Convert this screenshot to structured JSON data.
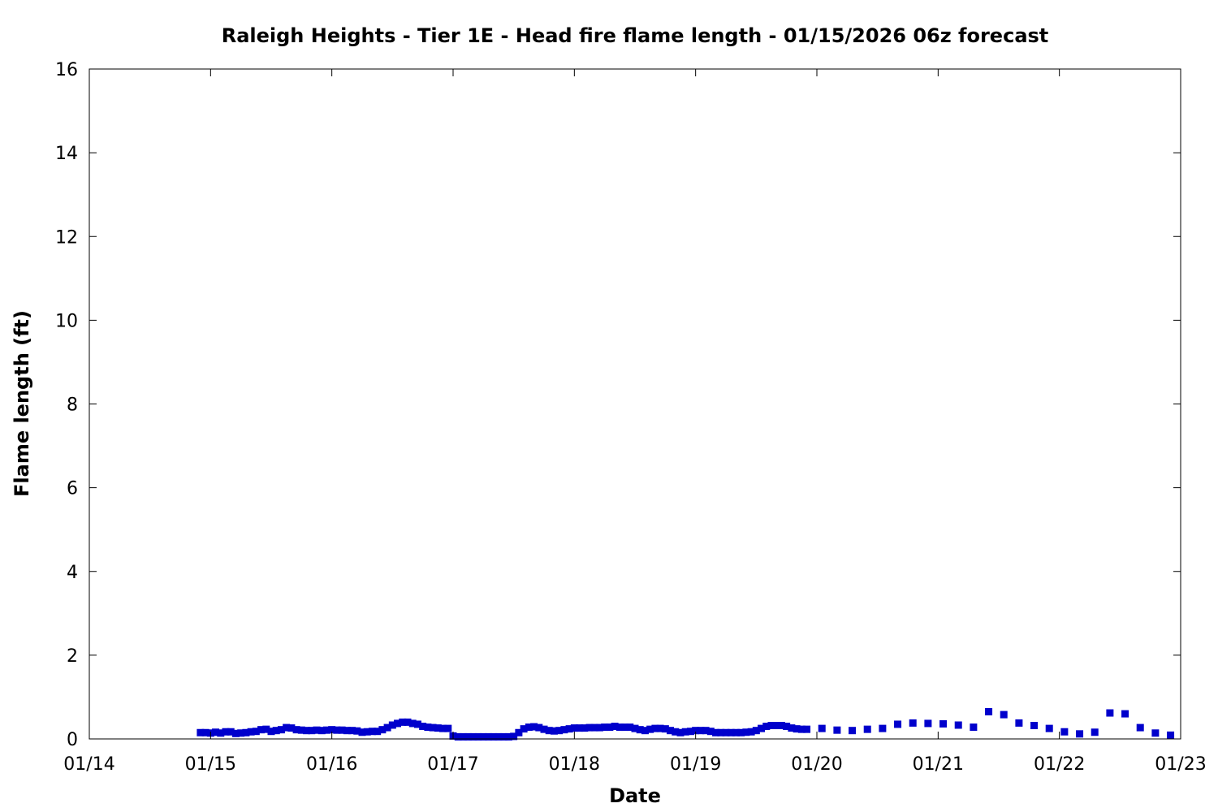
{
  "chart_data": {
    "type": "scatter",
    "title": "Raleigh Heights - Tier 1E - Head fire flame length - 01/15/2026 06z forecast",
    "xlabel": "Date",
    "ylabel": "Flame length (ft)",
    "x_ticks": [
      "01/14",
      "01/15",
      "01/16",
      "01/17",
      "01/18",
      "01/19",
      "01/20",
      "01/21",
      "01/22",
      "01/23"
    ],
    "y_ticks": [
      "0",
      "2",
      "4",
      "6",
      "8",
      "10",
      "12",
      "14",
      "16"
    ],
    "xlim": [
      "01/14 00:00",
      "01/23 00:00"
    ],
    "ylim": [
      0,
      16
    ],
    "grid": false,
    "legend": "none",
    "marker_color": "#0000cc",
    "series": [
      {
        "x": [
          "01/14 22:00",
          "01/14 23:00",
          "01/15 00:00",
          "01/15 01:00",
          "01/15 02:00",
          "01/15 03:00",
          "01/15 04:00",
          "01/15 05:00",
          "01/15 06:00",
          "01/15 07:00",
          "01/15 08:00",
          "01/15 09:00",
          "01/15 10:00",
          "01/15 11:00",
          "01/15 12:00",
          "01/15 13:00",
          "01/15 14:00",
          "01/15 15:00",
          "01/15 16:00",
          "01/15 17:00",
          "01/15 18:00",
          "01/15 19:00",
          "01/15 20:00",
          "01/15 21:00",
          "01/15 22:00",
          "01/15 23:00",
          "01/16 00:00",
          "01/16 01:00",
          "01/16 02:00",
          "01/16 03:00",
          "01/16 04:00",
          "01/16 05:00",
          "01/16 06:00",
          "01/16 07:00",
          "01/16 08:00",
          "01/16 09:00",
          "01/16 10:00",
          "01/16 11:00",
          "01/16 12:00",
          "01/16 13:00",
          "01/16 14:00",
          "01/16 15:00",
          "01/16 16:00",
          "01/16 17:00",
          "01/16 18:00",
          "01/16 19:00",
          "01/16 20:00",
          "01/16 21:00",
          "01/16 22:00",
          "01/16 23:00",
          "01/17 00:00",
          "01/17 01:00",
          "01/17 02:00",
          "01/17 03:00",
          "01/17 04:00",
          "01/17 05:00",
          "01/17 06:00",
          "01/17 07:00",
          "01/17 08:00",
          "01/17 09:00",
          "01/17 10:00",
          "01/17 11:00",
          "01/17 12:00",
          "01/17 13:00",
          "01/17 14:00",
          "01/17 15:00",
          "01/17 16:00",
          "01/17 17:00",
          "01/17 18:00",
          "01/17 19:00",
          "01/17 20:00",
          "01/17 21:00",
          "01/17 22:00",
          "01/17 23:00",
          "01/18 00:00",
          "01/18 01:00",
          "01/18 02:00",
          "01/18 03:00",
          "01/18 04:00",
          "01/18 05:00",
          "01/18 06:00",
          "01/18 07:00",
          "01/18 08:00",
          "01/18 09:00",
          "01/18 10:00",
          "01/18 11:00",
          "01/18 12:00",
          "01/18 13:00",
          "01/18 14:00",
          "01/18 15:00",
          "01/18 16:00",
          "01/18 17:00",
          "01/18 18:00",
          "01/18 19:00",
          "01/18 20:00",
          "01/18 21:00",
          "01/18 22:00",
          "01/18 23:00",
          "01/19 00:00",
          "01/19 01:00",
          "01/19 02:00",
          "01/19 03:00",
          "01/19 04:00",
          "01/19 05:00",
          "01/19 06:00",
          "01/19 07:00",
          "01/19 08:00",
          "01/19 09:00",
          "01/19 10:00",
          "01/19 11:00",
          "01/19 12:00",
          "01/19 13:00",
          "01/19 14:00",
          "01/19 15:00",
          "01/19 16:00",
          "01/19 17:00",
          "01/19 18:00",
          "01/19 19:00",
          "01/19 20:00",
          "01/19 21:00",
          "01/19 22:00",
          "01/20 01:00",
          "01/20 04:00",
          "01/20 07:00",
          "01/20 10:00",
          "01/20 13:00",
          "01/20 16:00",
          "01/20 19:00",
          "01/20 22:00",
          "01/21 01:00",
          "01/21 04:00",
          "01/21 07:00",
          "01/21 10:00",
          "01/21 13:00",
          "01/21 16:00",
          "01/21 19:00",
          "01/21 22:00",
          "01/22 01:00",
          "01/22 04:00",
          "01/22 07:00",
          "01/22 10:00",
          "01/22 13:00",
          "01/22 16:00",
          "01/22 19:00",
          "01/22 22:00"
        ],
        "values": [
          0.15,
          0.15,
          0.14,
          0.16,
          0.14,
          0.17,
          0.17,
          0.13,
          0.14,
          0.15,
          0.17,
          0.18,
          0.22,
          0.23,
          0.18,
          0.2,
          0.22,
          0.27,
          0.26,
          0.22,
          0.21,
          0.2,
          0.2,
          0.21,
          0.2,
          0.21,
          0.22,
          0.21,
          0.21,
          0.2,
          0.2,
          0.19,
          0.16,
          0.17,
          0.18,
          0.18,
          0.22,
          0.27,
          0.33,
          0.37,
          0.4,
          0.4,
          0.37,
          0.35,
          0.3,
          0.28,
          0.27,
          0.26,
          0.25,
          0.25,
          0.07,
          0.05,
          0.05,
          0.05,
          0.05,
          0.05,
          0.05,
          0.05,
          0.05,
          0.05,
          0.05,
          0.05,
          0.06,
          0.15,
          0.24,
          0.28,
          0.29,
          0.27,
          0.23,
          0.2,
          0.19,
          0.2,
          0.22,
          0.24,
          0.26,
          0.26,
          0.26,
          0.27,
          0.27,
          0.27,
          0.28,
          0.28,
          0.3,
          0.28,
          0.28,
          0.28,
          0.25,
          0.22,
          0.2,
          0.23,
          0.25,
          0.25,
          0.24,
          0.2,
          0.17,
          0.15,
          0.17,
          0.18,
          0.2,
          0.2,
          0.2,
          0.18,
          0.15,
          0.15,
          0.15,
          0.15,
          0.15,
          0.15,
          0.16,
          0.17,
          0.2,
          0.25,
          0.3,
          0.32,
          0.32,
          0.32,
          0.3,
          0.26,
          0.24,
          0.23,
          0.23,
          0.25,
          0.21,
          0.2,
          0.23,
          0.25,
          0.35,
          0.38,
          0.37,
          0.36,
          0.33,
          0.28,
          0.65,
          0.58,
          0.38,
          0.32,
          0.25,
          0.17,
          0.12,
          0.16,
          0.62,
          0.6,
          0.27,
          0.14,
          0.09
        ]
      }
    ]
  }
}
